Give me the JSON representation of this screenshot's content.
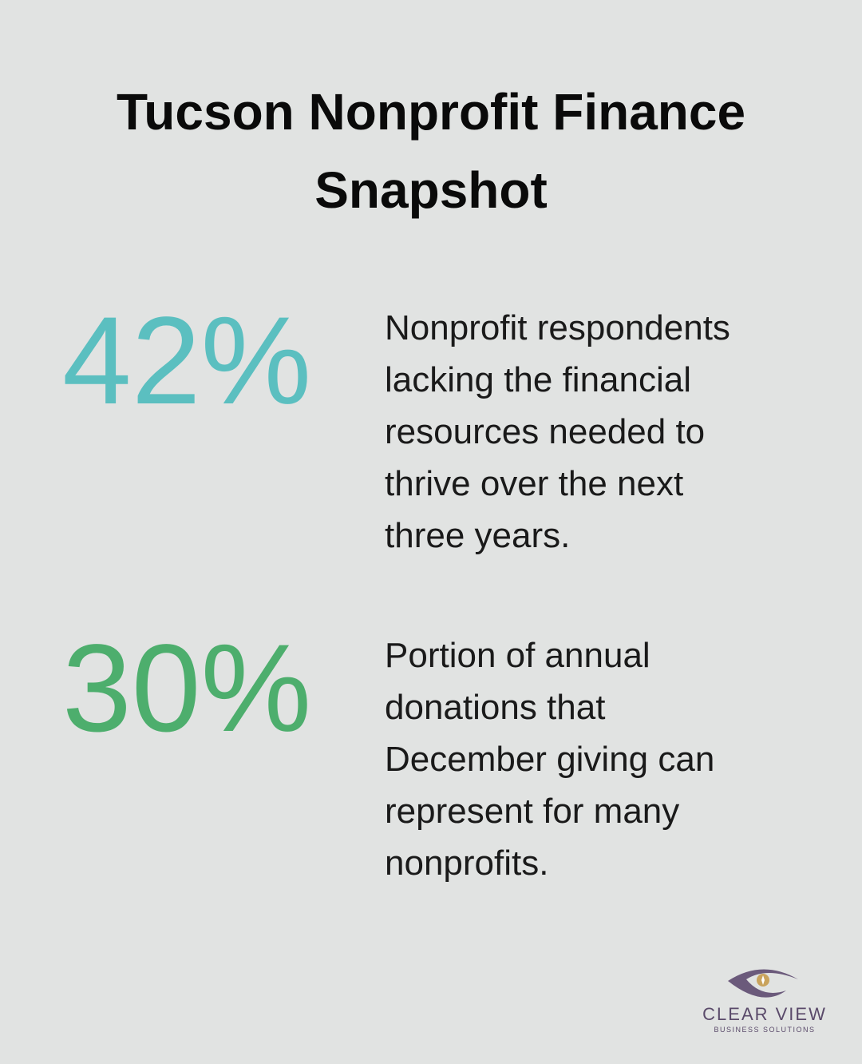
{
  "title_lines": [
    "Tucson Nonprofit Finance",
    "Snapshot"
  ],
  "stats": [
    {
      "figure": "42%",
      "description_lines": [
        "Nonprofit respondents",
        "lacking the financial",
        "resources needed to",
        "thrive over the next",
        "three years."
      ]
    },
    {
      "figure": "30%",
      "description_lines": [
        "Portion of annual",
        "donations that",
        "December giving can",
        "represent for many",
        "nonprofits."
      ]
    }
  ],
  "logo": {
    "name": "CLEAR VIEW",
    "tagline": "BUSINESS SOLUTIONS"
  }
}
